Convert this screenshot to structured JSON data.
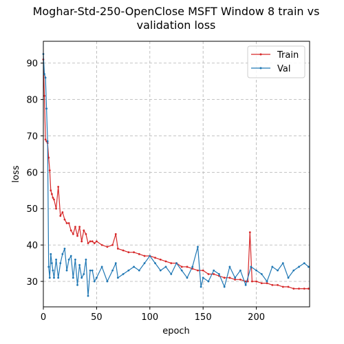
{
  "chart_data": {
    "type": "line",
    "title_line1": "Moghar-Std-250-OpenClose MSFT Window 8 train vs",
    "title_line2": "validation loss",
    "xlabel": "epoch",
    "ylabel": "loss",
    "xlim": [
      0,
      250
    ],
    "ylim": [
      23,
      96
    ],
    "xticks": [
      0,
      50,
      100,
      150,
      200
    ],
    "yticks": [
      30,
      40,
      50,
      60,
      70,
      80,
      90
    ],
    "grid": true,
    "legend_position": "top-right",
    "series": [
      {
        "name": "Train",
        "color": "#d62728",
        "x": [
          0,
          1,
          2,
          3,
          4,
          5,
          6,
          7,
          8,
          9,
          10,
          12,
          14,
          16,
          18,
          20,
          22,
          24,
          26,
          28,
          30,
          32,
          34,
          36,
          38,
          40,
          42,
          44,
          46,
          48,
          50,
          55,
          60,
          65,
          68,
          70,
          75,
          80,
          85,
          90,
          95,
          100,
          105,
          110,
          115,
          120,
          125,
          130,
          135,
          140,
          145,
          150,
          155,
          160,
          165,
          170,
          175,
          180,
          185,
          190,
          192,
          194,
          196,
          200,
          205,
          210,
          215,
          220,
          225,
          230,
          235,
          240,
          245,
          249
        ],
        "y": [
          91,
          81,
          69,
          68.5,
          68,
          64,
          60.5,
          55,
          54,
          53,
          52.5,
          50,
          56,
          48,
          49,
          47,
          46,
          46,
          44,
          43,
          45,
          42.5,
          45,
          41,
          44,
          43,
          40.5,
          41,
          41,
          40.5,
          41,
          40,
          39.5,
          40,
          43,
          39,
          38.5,
          38,
          38,
          37.5,
          37,
          37,
          36.5,
          36,
          35.5,
          35,
          35,
          34,
          34,
          33.5,
          33,
          33,
          32,
          32,
          31.5,
          31,
          31,
          30.5,
          30.5,
          30,
          30,
          43.5,
          30,
          30,
          29.5,
          29.5,
          29,
          29,
          28.5,
          28.5,
          28,
          28,
          28,
          28
        ]
      },
      {
        "name": "Val",
        "color": "#1f77b4",
        "x": [
          0,
          1,
          2,
          3,
          4,
          5,
          6,
          7,
          8,
          9,
          10,
          12,
          14,
          16,
          18,
          20,
          22,
          24,
          26,
          28,
          30,
          32,
          34,
          36,
          38,
          40,
          42,
          44,
          46,
          48,
          50,
          55,
          60,
          65,
          68,
          70,
          75,
          80,
          85,
          90,
          95,
          100,
          105,
          110,
          115,
          120,
          125,
          130,
          135,
          140,
          145,
          148,
          150,
          155,
          160,
          165,
          170,
          175,
          180,
          185,
          190,
          195,
          200,
          205,
          210,
          215,
          220,
          225,
          230,
          235,
          240,
          245,
          249
        ],
        "y": [
          92.5,
          87,
          86,
          77.5,
          68.5,
          34,
          31,
          37.5,
          35,
          33,
          31,
          36,
          31,
          35,
          37.5,
          39,
          33,
          36,
          37,
          31,
          36,
          29,
          34.5,
          31,
          32,
          36,
          26,
          33,
          33,
          30,
          31,
          34,
          30,
          33,
          35,
          31,
          32,
          33,
          34,
          33,
          35,
          37,
          35,
          33,
          34,
          32,
          35,
          33,
          31,
          34,
          39.5,
          28.5,
          31,
          30,
          33,
          32,
          28.5,
          34,
          31,
          33,
          29,
          34,
          33,
          32,
          30,
          34,
          33,
          35,
          31,
          33,
          34,
          35,
          34
        ]
      }
    ]
  }
}
